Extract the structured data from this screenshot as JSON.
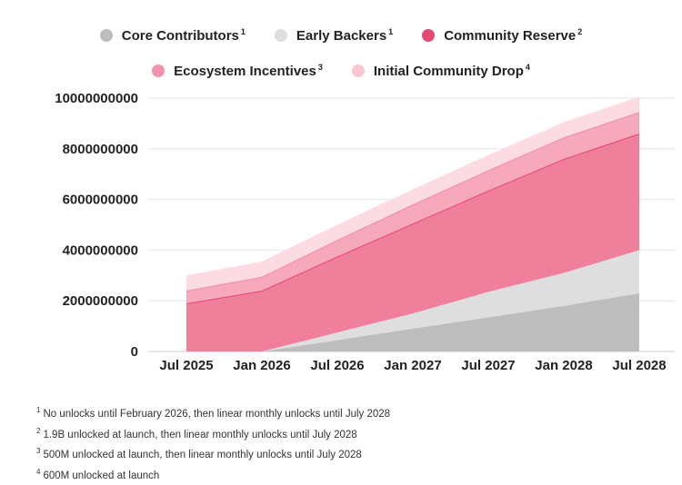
{
  "chart_data": {
    "type": "area",
    "stacked": true,
    "x": [
      "Jul 2025",
      "Jan 2026",
      "Jul 2026",
      "Jan 2027",
      "Jul 2027",
      "Jan 2028",
      "Jul 2028"
    ],
    "ylim": [
      0,
      10000000000
    ],
    "yticks": [
      0,
      2000000000,
      4000000000,
      6000000000,
      8000000000,
      10000000000
    ],
    "grid": true,
    "legend_position": "top-center",
    "series": [
      {
        "name": "Core Contributors",
        "note": "1",
        "color": "#bdbdbd",
        "values": [
          0,
          0,
          450000000,
          900000000,
          1350000000,
          1800000000,
          2300000000
        ]
      },
      {
        "name": "Early Backers",
        "note": "1",
        "color": "#dedede",
        "values": [
          0,
          0,
          300000000,
          600000000,
          1000000000,
          1300000000,
          1700000000
        ]
      },
      {
        "name": "Community Reserve",
        "note": "2",
        "color": "#f07f9c",
        "line_color": "#e8466f",
        "values": [
          1900000000,
          2400000000,
          3000000000,
          3550000000,
          4000000000,
          4500000000,
          4600000000
        ]
      },
      {
        "name": "Ecosystem Incentives",
        "note": "3",
        "color": "#f6a9bd",
        "line_color": "#f08aa5",
        "values": [
          500000000,
          550000000,
          650000000,
          750000000,
          800000000,
          850000000,
          850000000
        ]
      },
      {
        "name": "Initial Community Drop",
        "note": "4",
        "color": "#fcdbe3",
        "values": [
          600000000,
          600000000,
          600000000,
          600000000,
          600000000,
          600000000,
          600000000
        ]
      }
    ],
    "legend_colors": [
      "#bdbdbd",
      "#dedede",
      "#e24a72",
      "#f394ad",
      "#f9c6d2"
    ]
  },
  "footnotes": [
    {
      "mark": "1",
      "text": "No unlocks until February 2026, then linear monthly unlocks until July 2028"
    },
    {
      "mark": "2",
      "text": "1.9B unlocked at launch, then linear monthly unlocks until July 2028"
    },
    {
      "mark": "3",
      "text": "500M unlocked at launch, then linear monthly unlocks until July 2028"
    },
    {
      "mark": "4",
      "text": "600M unlocked at launch"
    }
  ]
}
